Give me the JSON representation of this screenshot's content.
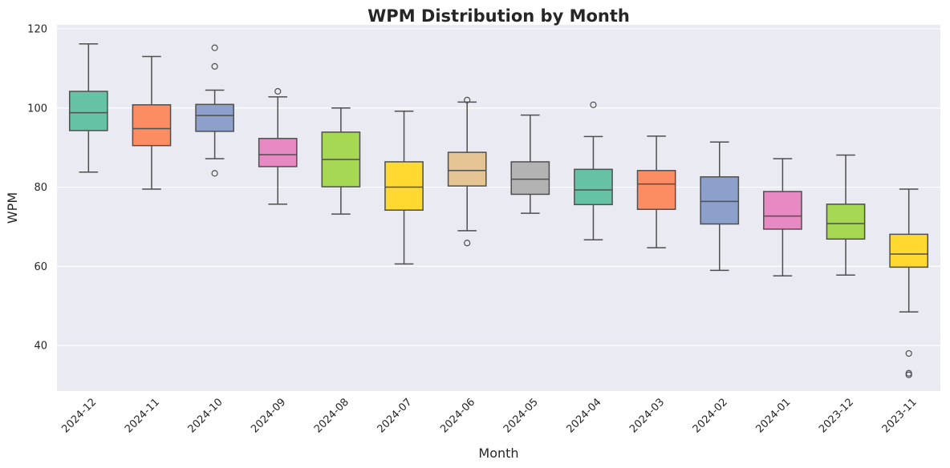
{
  "chart_data": {
    "type": "box",
    "title": "WPM Distribution by Month",
    "xlabel": "Month",
    "ylabel": "WPM",
    "ylim": [
      28.5,
      121
    ],
    "yticks": [
      40,
      60,
      80,
      100,
      120
    ],
    "grid": true,
    "legend": "none",
    "categories": [
      "2024-12",
      "2024-11",
      "2024-10",
      "2024-09",
      "2024-08",
      "2024-07",
      "2024-06",
      "2024-05",
      "2024-04",
      "2024-03",
      "2024-02",
      "2024-01",
      "2023-12",
      "2023-11"
    ],
    "colors": [
      "#66c2a5",
      "#fc8d62",
      "#8da0cb",
      "#e78ac3",
      "#a6d854",
      "#ffd92f",
      "#e5c494",
      "#b3b3b3",
      "#66c2a5",
      "#fc8d62",
      "#8da0cb",
      "#e78ac3",
      "#a6d854",
      "#ffd92f"
    ],
    "boxes": [
      {
        "whislo": 83.8,
        "q1": 94.3,
        "median": 98.8,
        "q3": 104.2,
        "whishi": 116.2,
        "fliers": []
      },
      {
        "whislo": 79.5,
        "q1": 90.5,
        "median": 94.8,
        "q3": 100.8,
        "whishi": 113.0,
        "fliers": []
      },
      {
        "whislo": 87.2,
        "q1": 94.1,
        "median": 98.1,
        "q3": 100.9,
        "whishi": 104.5,
        "fliers": [
          115.2,
          110.5,
          83.5
        ]
      },
      {
        "whislo": 75.7,
        "q1": 85.2,
        "median": 88.2,
        "q3": 92.3,
        "whishi": 102.8,
        "fliers": [
          104.2
        ]
      },
      {
        "whislo": 73.2,
        "q1": 80.1,
        "median": 87.0,
        "q3": 93.9,
        "whishi": 100.0,
        "fliers": []
      },
      {
        "whislo": 60.6,
        "q1": 74.2,
        "median": 80.0,
        "q3": 86.4,
        "whishi": 99.2,
        "fliers": []
      },
      {
        "whislo": 69.0,
        "q1": 80.3,
        "median": 84.2,
        "q3": 88.8,
        "whishi": 101.5,
        "fliers": [
          102.0,
          65.9
        ]
      },
      {
        "whislo": 73.4,
        "q1": 78.2,
        "median": 82.0,
        "q3": 86.4,
        "whishi": 98.2,
        "fliers": []
      },
      {
        "whislo": 66.7,
        "q1": 75.6,
        "median": 79.3,
        "q3": 84.5,
        "whishi": 92.8,
        "fliers": [
          100.8
        ]
      },
      {
        "whislo": 64.7,
        "q1": 74.4,
        "median": 80.8,
        "q3": 84.2,
        "whishi": 92.9,
        "fliers": []
      },
      {
        "whislo": 59.0,
        "q1": 70.7,
        "median": 76.4,
        "q3": 82.6,
        "whishi": 91.4,
        "fliers": []
      },
      {
        "whislo": 57.6,
        "q1": 69.4,
        "median": 72.7,
        "q3": 78.9,
        "whishi": 87.2,
        "fliers": []
      },
      {
        "whislo": 57.8,
        "q1": 66.9,
        "median": 70.8,
        "q3": 75.7,
        "whishi": 88.1,
        "fliers": []
      },
      {
        "whislo": 48.5,
        "q1": 59.8,
        "median": 63.1,
        "q3": 68.1,
        "whishi": 79.5,
        "fliers": [
          38.0,
          33.0,
          32.6
        ]
      }
    ]
  }
}
